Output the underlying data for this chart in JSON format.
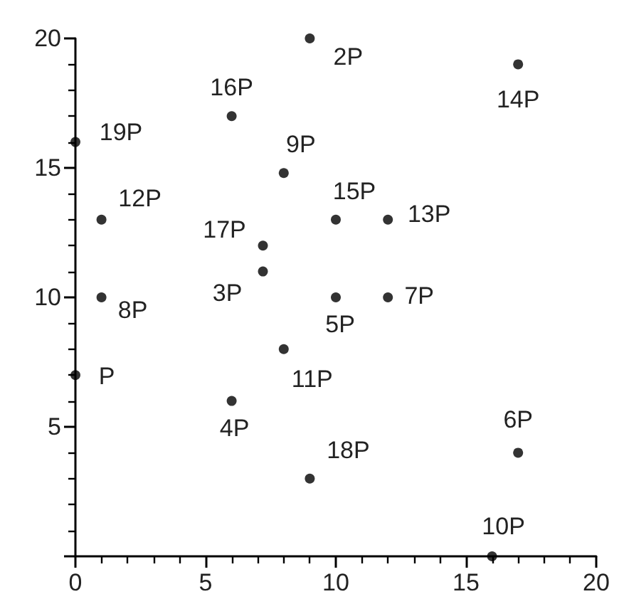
{
  "chart_data": {
    "type": "scatter",
    "x": [
      0,
      1,
      6,
      8,
      7.2,
      7.2,
      9,
      17,
      10,
      12,
      12,
      10,
      1,
      0,
      6,
      8,
      9,
      17,
      16
    ],
    "values": [
      16,
      13,
      17,
      14.8,
      12,
      11,
      20,
      19,
      13,
      13,
      10,
      10,
      10,
      7,
      6,
      8,
      3,
      4,
      0
    ],
    "color": "#000000",
    "marker": "circle",
    "grid": false,
    "xlim": [
      0,
      20
    ],
    "ylim": [
      0,
      20
    ],
    "xticks": [
      0,
      5,
      10,
      15,
      20
    ],
    "yticks": [
      {
        "value": 0,
        "label": null
      },
      5,
      10,
      15,
      20
    ],
    "annotations": [
      {
        "text": "19P",
        "x": 0,
        "y": 16
      },
      {
        "text": "12P",
        "x": 1,
        "y": 13
      },
      {
        "text": "16P",
        "x": 6,
        "y": 17
      },
      {
        "text": "9P",
        "x": 8,
        "y": 14.8
      },
      {
        "text": "17P",
        "x": 7.2,
        "y": 12
      },
      {
        "text": "3P",
        "x": 7.2,
        "y": 11
      },
      {
        "text": "2P",
        "x": 9,
        "y": 20
      },
      {
        "text": "14P",
        "x": 17,
        "y": 19
      },
      {
        "text": "15P",
        "x": 10,
        "y": 13
      },
      {
        "text": "13P",
        "x": 12,
        "y": 13
      },
      {
        "text": "7P",
        "x": 12,
        "y": 10
      },
      {
        "text": "5P",
        "x": 10,
        "y": 10
      },
      {
        "text": "8P",
        "x": 1,
        "y": 10
      },
      {
        "text": "P",
        "x": 0,
        "y": 7
      },
      {
        "text": "4P",
        "x": 6,
        "y": 6
      },
      {
        "text": "11P",
        "x": 8,
        "y": 8
      },
      {
        "text": "18P",
        "x": 9,
        "y": 3
      },
      {
        "text": "6P",
        "x": 17,
        "y": 4
      },
      {
        "text": "10P",
        "x": 16,
        "y": 0
      }
    ]
  }
}
